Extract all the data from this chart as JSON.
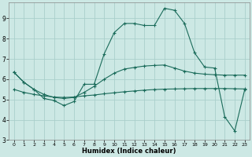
{
  "xlabel": "Humidex (Indice chaleur)",
  "bg_color": "#cce8e4",
  "grid_color": "#aacfcb",
  "line_color": "#1a6b5a",
  "xlim_min": -0.5,
  "xlim_max": 23.5,
  "ylim_min": 3,
  "ylim_max": 9.8,
  "xticks": [
    0,
    1,
    2,
    3,
    4,
    5,
    6,
    7,
    8,
    9,
    10,
    11,
    12,
    13,
    14,
    15,
    16,
    17,
    18,
    19,
    20,
    21,
    22,
    23
  ],
  "yticks": [
    3,
    4,
    5,
    6,
    7,
    8,
    9
  ],
  "series": [
    [
      6.35,
      5.85,
      5.5,
      5.05,
      4.95,
      4.7,
      4.9,
      5.75,
      5.75,
      7.25,
      8.3,
      8.75,
      8.75,
      8.65,
      8.65,
      9.5,
      9.4,
      8.75,
      7.3,
      6.6,
      6.55,
      4.15,
      3.45,
      5.5
    ],
    [
      5.5,
      5.35,
      5.25,
      5.18,
      5.12,
      5.1,
      5.12,
      5.18,
      5.22,
      5.28,
      5.33,
      5.38,
      5.42,
      5.46,
      5.49,
      5.51,
      5.52,
      5.53,
      5.54,
      5.54,
      5.54,
      5.54,
      5.53,
      5.52
    ],
    [
      6.35,
      5.85,
      5.5,
      5.25,
      5.1,
      5.05,
      5.1,
      5.35,
      5.65,
      6.0,
      6.3,
      6.5,
      6.58,
      6.65,
      6.68,
      6.7,
      6.55,
      6.4,
      6.3,
      6.25,
      6.22,
      6.2,
      6.2,
      6.2
    ]
  ]
}
